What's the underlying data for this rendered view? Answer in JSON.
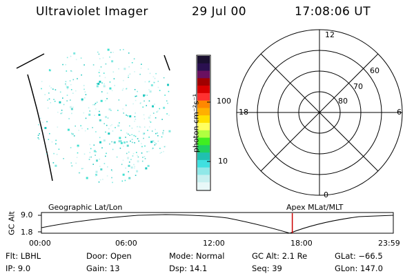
{
  "header": {
    "title": "Ultraviolet Imager",
    "date": "29 Jul 00",
    "time": "17:08:06 UT"
  },
  "colorbar": {
    "unit_label": "photon cm⁻²s⁻¹",
    "ticks": [
      "100",
      "10"
    ],
    "colors": [
      "#1a1030",
      "#2a1050",
      "#6a1060",
      "#a00000",
      "#d80000",
      "#ff3030",
      "#ff8800",
      "#ffb000",
      "#ffe000",
      "#ffff60",
      "#b0ff40",
      "#40ee20",
      "#20d060",
      "#20c0b0",
      "#40e0e0",
      "#90e8e8",
      "#c8f0f0",
      "#e8f8f8"
    ],
    "red_marker_color": "#cc0000"
  },
  "polar": {
    "lat_labels": [
      "60",
      "70",
      "80"
    ],
    "mlt_labels": [
      "12",
      "18",
      "6",
      "0"
    ]
  },
  "timeline": {
    "y_label": "GC Alt",
    "y_ticks": [
      "9.0",
      "1.8"
    ],
    "left_title": "Geographic Lat/Lon",
    "right_title": "Apex MLat/MLT",
    "x_ticks": [
      "00:00",
      "06:00",
      "12:00",
      "18:00",
      "23:59"
    ],
    "current_time_fraction": 0.713
  },
  "info": {
    "flt": "Flt:  LBHL",
    "ip": "IP:  9.0",
    "door": "Door:  Open",
    "gain": "Gain:  13",
    "mode": "Mode:  Normal",
    "dsp": "Dsp:    14.1",
    "gcalt": "GC Alt:  2.1 Re",
    "seq": "Seq:  39",
    "glat": "GLat:  −66.5",
    "glon": "GLon:  147.0"
  }
}
